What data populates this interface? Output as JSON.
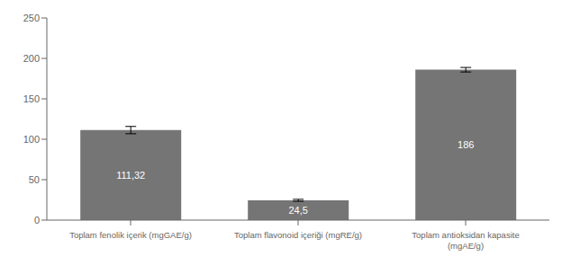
{
  "chart_data": {
    "type": "bar",
    "categories": [
      "Toplam fenolik içerik (mgGAE/g)",
      "Toplam flavonoid içeriği (mgRE/g)",
      "Toplam antioksidan kapasite\n(mgAE/g)"
    ],
    "values": [
      111.32,
      24.5,
      186
    ],
    "errors": [
      4.5,
      1.2,
      2.8
    ],
    "value_labels": [
      "111,32",
      "24,5",
      "186"
    ],
    "data_labels": true,
    "color": "#757575",
    "ylim": [
      0,
      250
    ],
    "yticks": [
      0,
      50,
      100,
      150,
      200,
      250
    ],
    "grid": false
  }
}
